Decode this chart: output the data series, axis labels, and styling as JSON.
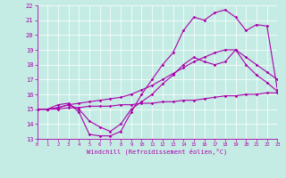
{
  "xlabel": "Windchill (Refroidissement éolien,°C)",
  "xlim": [
    0,
    23
  ],
  "ylim": [
    13,
    22
  ],
  "xticks": [
    0,
    1,
    2,
    3,
    4,
    5,
    6,
    7,
    8,
    9,
    10,
    11,
    12,
    13,
    14,
    15,
    16,
    17,
    18,
    19,
    20,
    21,
    22,
    23
  ],
  "yticks": [
    13,
    14,
    15,
    16,
    17,
    18,
    19,
    20,
    21,
    22
  ],
  "bg_color": "#c5ece4",
  "line_color": "#aa00aa",
  "curves": {
    "c1_straight_low": {
      "x": [
        0,
        1,
        2,
        3,
        4,
        5,
        6,
        7,
        8,
        9,
        10,
        11,
        12,
        13,
        14,
        15,
        16,
        17,
        18,
        19,
        20,
        21,
        22,
        23
      ],
      "y": [
        15,
        15,
        15,
        15.1,
        15.1,
        15.2,
        15.2,
        15.2,
        15.3,
        15.3,
        15.4,
        15.4,
        15.5,
        15.5,
        15.6,
        15.6,
        15.7,
        15.8,
        15.9,
        15.9,
        16.0,
        16.0,
        16.1,
        16.1
      ]
    },
    "c2_straight_high": {
      "x": [
        0,
        1,
        2,
        3,
        4,
        5,
        6,
        7,
        8,
        9,
        10,
        11,
        12,
        13,
        14,
        15,
        16,
        17,
        18,
        19,
        20,
        21,
        22,
        23
      ],
      "y": [
        15,
        15,
        15.1,
        15.3,
        15.4,
        15.5,
        15.6,
        15.7,
        15.8,
        16.0,
        16.3,
        16.6,
        17.0,
        17.4,
        17.8,
        18.2,
        18.5,
        18.8,
        19.0,
        19.0,
        18.5,
        18.0,
        17.5,
        17.0
      ]
    },
    "c3_dip_rise_peak": {
      "x": [
        0,
        1,
        2,
        3,
        4,
        5,
        6,
        7,
        8,
        9,
        10,
        11,
        12,
        13,
        14,
        15,
        16,
        17,
        18,
        19,
        20,
        21,
        22,
        23
      ],
      "y": [
        15,
        15,
        15.3,
        15.4,
        14.8,
        13.3,
        13.2,
        13.2,
        13.5,
        14.8,
        16.0,
        17.0,
        18.0,
        18.8,
        20.3,
        21.2,
        21.0,
        21.5,
        21.7,
        21.2,
        20.3,
        20.7,
        20.6,
        16.3
      ]
    },
    "c4_peak19": {
      "x": [
        0,
        1,
        2,
        3,
        4,
        5,
        6,
        7,
        8,
        9,
        10,
        11,
        12,
        13,
        14,
        15,
        16,
        17,
        18,
        19,
        20,
        21,
        22,
        23
      ],
      "y": [
        15,
        15,
        15.1,
        15.3,
        15.0,
        14.2,
        13.8,
        13.5,
        14.0,
        15.0,
        15.5,
        16.0,
        16.7,
        17.3,
        18.0,
        18.5,
        18.2,
        18.0,
        18.2,
        19.0,
        18.0,
        17.3,
        16.8,
        16.2
      ]
    }
  }
}
